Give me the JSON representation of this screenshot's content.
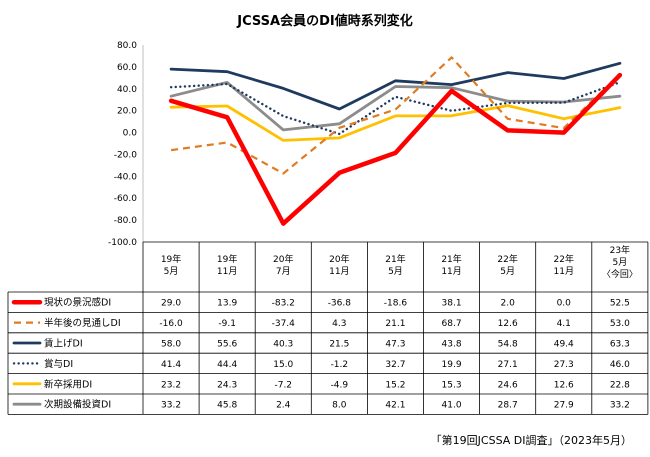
{
  "chart_data": {
    "type": "line",
    "title": "JCSSA会員のDI値時系列変化",
    "categories": [
      [
        "19年",
        "5月"
      ],
      [
        "19年",
        "11月"
      ],
      [
        "20年",
        "7月"
      ],
      [
        "20年",
        "11月"
      ],
      [
        "21年",
        "5月"
      ],
      [
        "21年",
        "11月"
      ],
      [
        "22年",
        "5月"
      ],
      [
        "22年",
        "11月"
      ],
      [
        "23年",
        "5月",
        "〈今回〉"
      ]
    ],
    "ylim": [
      -100,
      80
    ],
    "yticks": [
      "80.0",
      "60.0",
      "40.0",
      "20.0",
      "0.0",
      "-20.0",
      "-40.0",
      "-60.0",
      "-80.0",
      "-100.0"
    ],
    "yticks_values": [
      80,
      60,
      40,
      20,
      0,
      -20,
      -40,
      -60,
      -80,
      -100
    ],
    "grid": false,
    "series": [
      {
        "name": "現状の景況感DI",
        "color": "#ff0000",
        "style": "solid-thick",
        "values": [
          29.0,
          13.9,
          -83.2,
          -36.8,
          -18.6,
          38.1,
          2.0,
          0.0,
          52.5
        ],
        "labels": [
          "29.0",
          "13.9",
          "-83.2",
          "-36.8",
          "-18.6",
          "38.1",
          "2.0",
          "0.0",
          "52.5"
        ]
      },
      {
        "name": "半年後の見通しDI",
        "color": "#e07b22",
        "style": "dashed",
        "values": [
          -16.0,
          -9.1,
          -37.4,
          4.3,
          21.1,
          68.7,
          12.6,
          4.1,
          53.0
        ],
        "labels": [
          "-16.0",
          "-9.1",
          "-37.4",
          "4.3",
          "21.1",
          "68.7",
          "12.6",
          "4.1",
          "53.0"
        ]
      },
      {
        "name": "賃上げDI",
        "color": "#1f3a5f",
        "style": "solid",
        "values": [
          58.0,
          55.6,
          40.3,
          21.5,
          47.3,
          43.8,
          54.8,
          49.4,
          63.3
        ],
        "labels": [
          "58.0",
          "55.6",
          "40.3",
          "21.5",
          "47.3",
          "43.8",
          "54.8",
          "49.4",
          "63.3"
        ]
      },
      {
        "name": "賞与DI",
        "color": "#1f3a5f",
        "style": "dotted",
        "values": [
          41.4,
          44.4,
          15.0,
          -1.2,
          32.7,
          19.9,
          27.1,
          27.3,
          46.0
        ],
        "labels": [
          "41.4",
          "44.4",
          "15.0",
          "-1.2",
          "32.7",
          "19.9",
          "27.1",
          "27.3",
          "46.0"
        ]
      },
      {
        "name": "新卒採用DI",
        "color": "#ffc000",
        "style": "solid",
        "values": [
          23.2,
          24.3,
          -7.2,
          -4.9,
          15.2,
          15.3,
          24.6,
          12.6,
          22.8
        ],
        "labels": [
          "23.2",
          "24.3",
          "-7.2",
          "-4.9",
          "15.2",
          "15.3",
          "24.6",
          "12.6",
          "22.8"
        ]
      },
      {
        "name": "次期設備投資DI",
        "color": "#8c8c8c",
        "style": "solid",
        "values": [
          33.2,
          45.8,
          2.4,
          8.0,
          42.1,
          41.0,
          28.7,
          27.9,
          33.2
        ],
        "labels": [
          "33.2",
          "45.8",
          "2.4",
          "8.0",
          "42.1",
          "41.0",
          "28.7",
          "27.9",
          "33.2"
        ]
      }
    ],
    "source": "「第19回JCSSA DI調査」（2023年5月）"
  }
}
